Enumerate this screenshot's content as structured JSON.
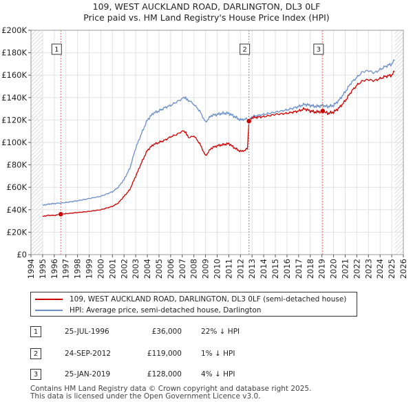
{
  "chart_data": {
    "type": "line",
    "title": "109, WEST AUCKLAND ROAD, DARLINGTON, DL3 0LF",
    "subtitle": "Price paid vs. HM Land Registry's House Price Index (HPI)",
    "xlim": [
      1994,
      2026
    ],
    "ylim": [
      0,
      200000
    ],
    "x_ticks": [
      "1994",
      "1995",
      "1996",
      "1997",
      "1998",
      "1999",
      "2000",
      "2001",
      "2002",
      "2003",
      "2004",
      "2005",
      "2006",
      "2007",
      "2008",
      "2009",
      "2010",
      "2011",
      "2012",
      "2013",
      "2014",
      "2015",
      "2016",
      "2017",
      "2018",
      "2019",
      "2020",
      "2021",
      "2022",
      "2023",
      "2024",
      "2025",
      "2026"
    ],
    "y_ticks": [
      {
        "value": 0,
        "label": "£0"
      },
      {
        "value": 20000,
        "label": "£20K"
      },
      {
        "value": 40000,
        "label": "£40K"
      },
      {
        "value": 60000,
        "label": "£60K"
      },
      {
        "value": 80000,
        "label": "£80K"
      },
      {
        "value": 100000,
        "label": "£100K"
      },
      {
        "value": 120000,
        "label": "£120K"
      },
      {
        "value": 140000,
        "label": "£140K"
      },
      {
        "value": 160000,
        "label": "£160K"
      },
      {
        "value": 180000,
        "label": "£180K"
      },
      {
        "value": 200000,
        "label": "£200K"
      }
    ],
    "grid": true,
    "data_start": 1995.0,
    "data_end": 2025.25,
    "series": [
      {
        "name": "109, WEST AUCKLAND ROAD, DARLINGTON, DL3 0LF (semi-detached house)",
        "color": "#cc0000",
        "x": [
          1995.0,
          1995.5,
          1996.0,
          1996.56,
          1997.0,
          1998.0,
          1999.0,
          2000.0,
          2001.0,
          2001.5,
          2002.0,
          2002.5,
          2003.0,
          2003.5,
          2004.0,
          2004.5,
          2005.0,
          2005.5,
          2006.0,
          2006.5,
          2007.0,
          2007.3,
          2007.6,
          2008.0,
          2008.5,
          2009.0,
          2009.5,
          2010.0,
          2010.5,
          2011.0,
          2011.5,
          2012.0,
          2012.4,
          2012.6,
          2012.73,
          2013.0,
          2014.0,
          2015.0,
          2016.0,
          2017.0,
          2017.5,
          2018.0,
          2018.5,
          2019.07,
          2019.5,
          2020.0,
          2020.5,
          2021.0,
          2021.5,
          2022.0,
          2022.5,
          2023.0,
          2023.5,
          2024.0,
          2024.5,
          2025.0,
          2025.25
        ],
        "y": [
          34000,
          35000,
          35000,
          36000,
          36500,
          37500,
          38500,
          40000,
          43000,
          46000,
          52000,
          58000,
          70000,
          82000,
          93000,
          98000,
          100000,
          102000,
          105000,
          107000,
          110000,
          109000,
          104000,
          106000,
          99000,
          88000,
          95000,
          97000,
          98000,
          99000,
          95000,
          92000,
          93000,
          95000,
          119000,
          122000,
          123000,
          125000,
          126000,
          128000,
          130000,
          128000,
          127000,
          128000,
          126000,
          127000,
          131000,
          137000,
          145000,
          151000,
          155000,
          156000,
          155000,
          157000,
          159000,
          160000,
          163000
        ]
      },
      {
        "name": "HPI: Average price, semi-detached house, Darlington",
        "color": "#6a8ec8",
        "x": [
          1995.0,
          1995.5,
          1996.0,
          1996.56,
          1997.0,
          1998.0,
          1999.0,
          2000.0,
          2001.0,
          2001.5,
          2002.0,
          2002.5,
          2003.0,
          2003.5,
          2004.0,
          2004.5,
          2005.0,
          2005.5,
          2006.0,
          2006.5,
          2007.0,
          2007.3,
          2007.6,
          2008.0,
          2008.5,
          2009.0,
          2009.5,
          2010.0,
          2010.5,
          2011.0,
          2011.5,
          2012.0,
          2012.4,
          2012.6,
          2012.73,
          2013.0,
          2014.0,
          2015.0,
          2016.0,
          2017.0,
          2017.5,
          2018.0,
          2018.5,
          2019.07,
          2019.5,
          2020.0,
          2020.5,
          2021.0,
          2021.5,
          2022.0,
          2022.5,
          2023.0,
          2023.5,
          2024.0,
          2024.5,
          2025.0,
          2025.25
        ],
        "y": [
          44000,
          45000,
          45500,
          46000,
          46500,
          48000,
          50000,
          52000,
          56000,
          60000,
          67000,
          77000,
          95000,
          108000,
          120000,
          126000,
          128000,
          131000,
          133000,
          136000,
          139000,
          140000,
          137000,
          134000,
          128000,
          118000,
          124000,
          125000,
          126000,
          126000,
          123000,
          120000,
          121000,
          121000,
          120000,
          123000,
          125000,
          127000,
          129000,
          132000,
          134000,
          133000,
          132000,
          133000,
          132000,
          133000,
          138000,
          145000,
          153000,
          158000,
          163000,
          164000,
          162000,
          165000,
          168000,
          170000,
          173000
        ]
      }
    ],
    "markers": [
      {
        "label": "1",
        "x": 1996.56,
        "price": 36000
      },
      {
        "label": "2",
        "x": 2012.73,
        "price": 119000
      },
      {
        "label": "3",
        "x": 2019.07,
        "price": 128000
      }
    ]
  },
  "legend": {
    "property_label": "109, WEST AUCKLAND ROAD, DARLINGTON, DL3 0LF (semi-detached house)",
    "hpi_label": "HPI: Average price, semi-detached house, Darlington",
    "property_color": "#cc0000",
    "hpi_color": "#6a8ec8"
  },
  "transactions": [
    {
      "num": "1",
      "date": "25-JUL-1996",
      "price": "£36,000",
      "hpi": "22% ↓ HPI"
    },
    {
      "num": "2",
      "date": "24-SEP-2012",
      "price": "£119,000",
      "hpi": "1% ↓ HPI"
    },
    {
      "num": "3",
      "date": "25-JAN-2019",
      "price": "£128,000",
      "hpi": "4% ↓ HPI"
    }
  ],
  "footer": {
    "line1": "Contains HM Land Registry data © Crown copyright and database right 2025.",
    "line2": "This data is licensed under the Open Government Licence v3.0."
  }
}
